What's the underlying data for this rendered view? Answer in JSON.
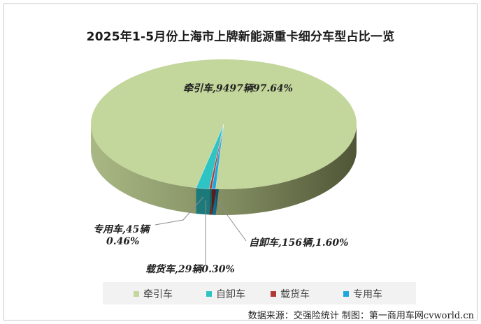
{
  "title": "2025年1-5月份上海市上牌新能源重卡细分车型占比一览",
  "source": "数据来源：交强险统计 制图：第一商用车网cvworld.cn",
  "chart_data": {
    "type": "pie",
    "title": "2025年1-5月份上海市上牌新能源重卡细分车型占比一览",
    "legend_position": "bottom",
    "series": [
      {
        "name": "牵引车",
        "value": 9497,
        "percent": 97.64,
        "color": "#c3d69b",
        "label_name": "牵引车,",
        "label_value": "9497辆97.64%"
      },
      {
        "name": "自卸车",
        "value": 156,
        "percent": 1.6,
        "color": "#2ec4c4",
        "label_name": "自卸车,",
        "label_value": "156辆,1.60%"
      },
      {
        "name": "载货车",
        "value": 29,
        "percent": 0.3,
        "color": "#b03a35",
        "label_name": "载货车,",
        "label_value": "29辆0.30%"
      },
      {
        "name": "专用车",
        "value": 45,
        "percent": 0.46,
        "color": "#1fa7dc",
        "label_name": "专用车,",
        "label_value": "45辆",
        "label_value2": "0.46%"
      }
    ]
  }
}
